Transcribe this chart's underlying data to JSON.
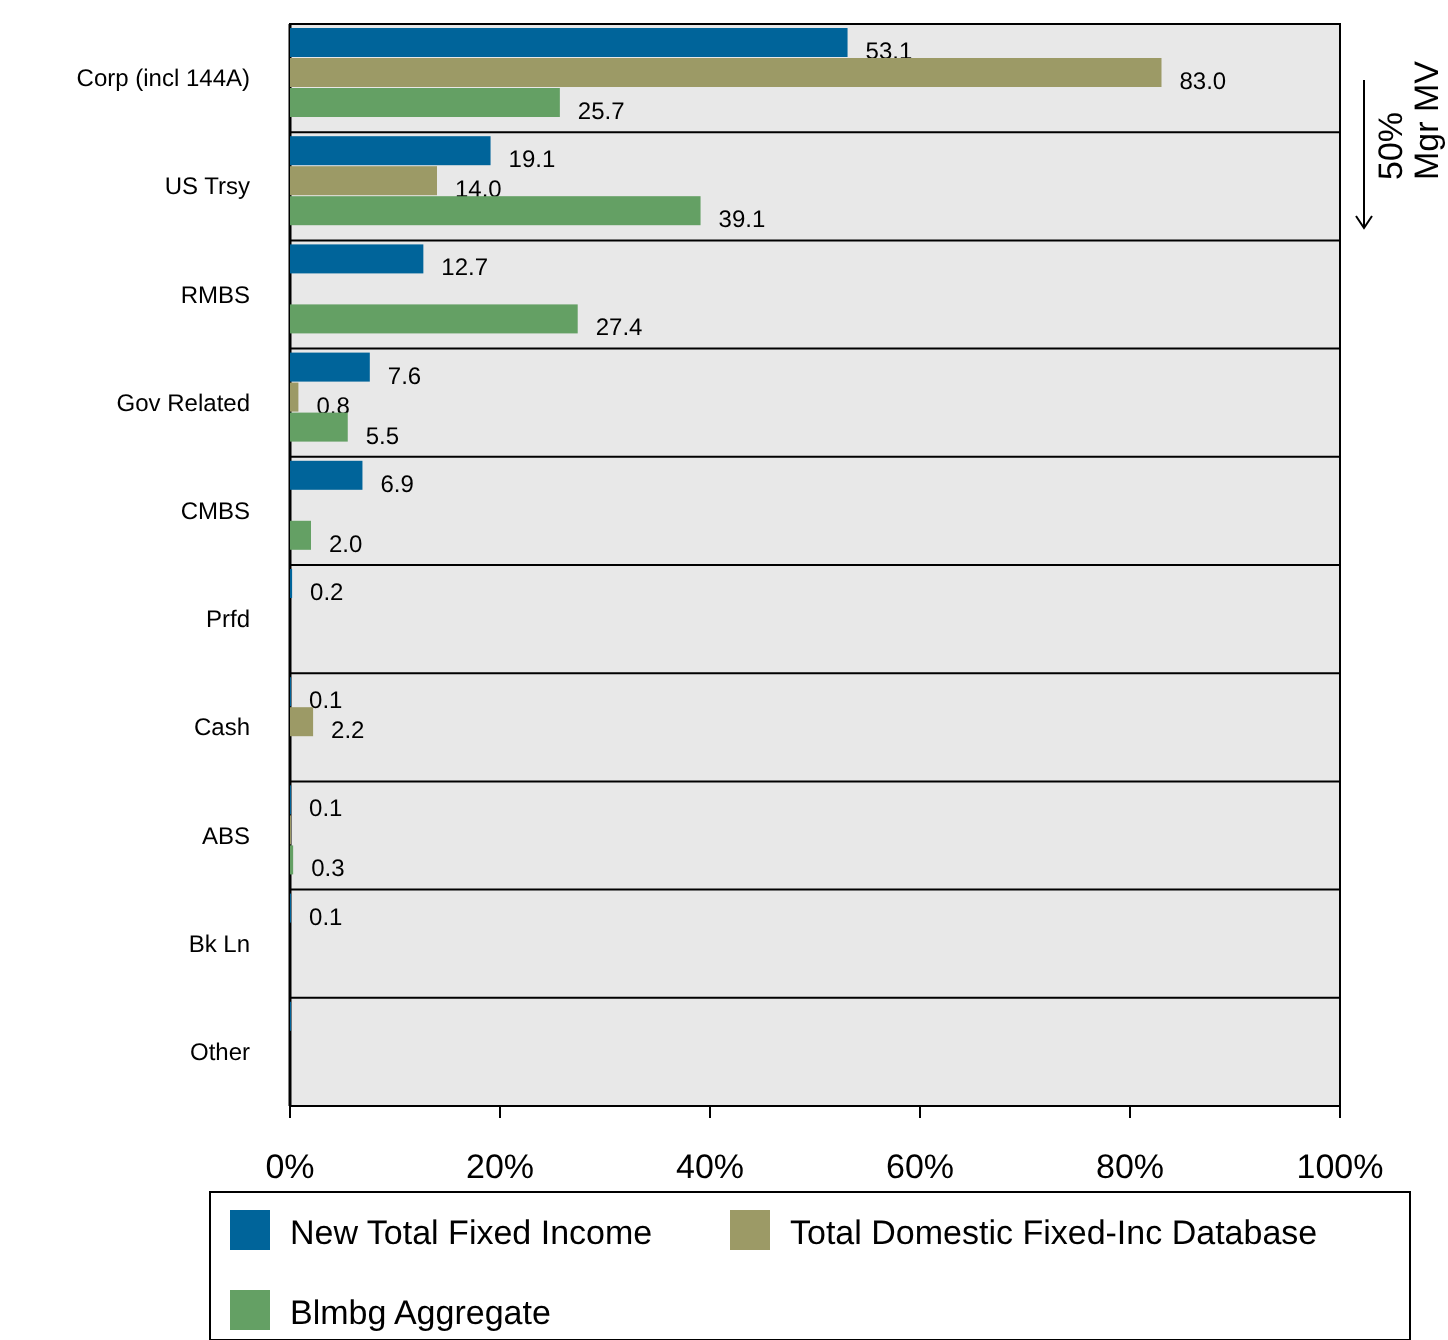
{
  "chart_data": {
    "type": "bar",
    "orientation": "horizontal",
    "categories": [
      "Corp (incl 144A)",
      "US Trsy",
      "RMBS",
      "Gov Related",
      "CMBS",
      "Prfd",
      "Cash",
      "ABS",
      "Bk Ln",
      "Other"
    ],
    "series": [
      {
        "name": "New Total Fixed Income",
        "color": "#00649a",
        "values": [
          53.1,
          19.1,
          12.7,
          7.6,
          6.9,
          0.2,
          0.1,
          0.1,
          0.1,
          0.1
        ],
        "value_labels": [
          "53.1",
          "19.1",
          "12.7",
          "7.6",
          "6.9",
          "0.2",
          "0.1",
          "0.1",
          "0.1",
          null
        ]
      },
      {
        "name": "Total Domestic Fixed-Inc Database",
        "color": "#9c9a66",
        "values": [
          83.0,
          14.0,
          null,
          0.8,
          null,
          null,
          2.2,
          0.1,
          null,
          null
        ],
        "value_labels": [
          "83.0",
          "14.0",
          null,
          "0.8",
          null,
          null,
          "2.2",
          null,
          null,
          null
        ]
      },
      {
        "name": "Blmbg Aggregate",
        "color": "#64a064",
        "values": [
          25.7,
          39.1,
          27.4,
          5.5,
          2.0,
          null,
          null,
          0.3,
          null,
          null
        ],
        "value_labels": [
          "25.7",
          "39.1",
          "27.4",
          "5.5",
          "2.0",
          null,
          null,
          "0.3",
          null,
          null
        ]
      }
    ],
    "xlim": [
      0,
      100
    ],
    "xticks": [
      {
        "value": 0,
        "label": "0%"
      },
      {
        "value": 20,
        "label": "20%"
      },
      {
        "value": 40,
        "label": "40%"
      },
      {
        "value": 60,
        "label": "60%"
      },
      {
        "value": 80,
        "label": "80%"
      },
      {
        "value": 100,
        "label": "100%"
      }
    ],
    "legend": "bottom",
    "annotations": [
      "50%\nMgr MV"
    ]
  }
}
